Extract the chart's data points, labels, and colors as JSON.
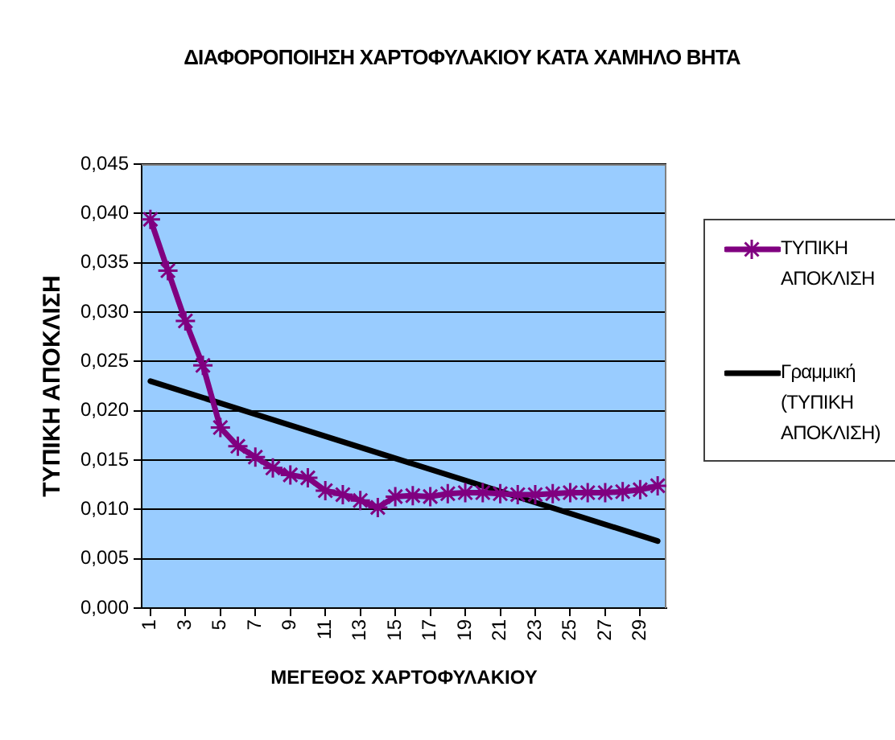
{
  "chart_data": {
    "type": "line",
    "title": "ΔΙΑΦΟΡΟΠΟΙΗΣΗ ΧΑΡΤΟΦΥΛΑΚΙΟΥ ΚΑΤΑ ΧΑΜΗΛΟ ΒΗΤΑ",
    "xlabel": "ΜΕΓΕΘΟΣ ΧΑΡΤΟΦΥΛΑΚΙΟΥ",
    "ylabel": "ΤΥΠΙΚΗ ΑΠΟΚΛΙΣΗ",
    "x": [
      1,
      2,
      3,
      4,
      5,
      6,
      7,
      8,
      9,
      10,
      11,
      12,
      13,
      14,
      15,
      16,
      17,
      18,
      19,
      20,
      21,
      22,
      23,
      24,
      25,
      26,
      27,
      28,
      29,
      30
    ],
    "series": [
      {
        "name": "ΤΥΠΙΚΗ ΑΠΟΚΛΙΣΗ",
        "color": "#800080",
        "values": [
          0.0394,
          0.0342,
          0.0291,
          0.0246,
          0.0183,
          0.0164,
          0.0153,
          0.0142,
          0.0135,
          0.0132,
          0.0119,
          0.0115,
          0.0109,
          0.0102,
          0.0113,
          0.0114,
          0.0113,
          0.0116,
          0.0117,
          0.0117,
          0.0116,
          0.0115,
          0.0115,
          0.0116,
          0.0117,
          0.0117,
          0.0117,
          0.0118,
          0.012,
          0.0124
        ]
      },
      {
        "name": "Γραμμική (ΤΥΠΙΚΗ ΑΠΟΚΛΙΣΗ)",
        "type": "line",
        "color": "#000000",
        "x": [
          1,
          30
        ],
        "values": [
          0.023,
          0.0068
        ],
        "marker": "none"
      }
    ],
    "xlim": [
      0.5,
      30.5
    ],
    "xticks": [
      1,
      3,
      5,
      7,
      9,
      11,
      13,
      15,
      17,
      19,
      21,
      23,
      25,
      27,
      29
    ],
    "ylim": [
      0,
      0.045
    ],
    "yticks": [
      {
        "value": 0,
        "label": "0,000"
      },
      {
        "value": 0.005,
        "label": "0,005"
      },
      {
        "value": 0.01,
        "label": "0,010"
      },
      {
        "value": 0.015,
        "label": "0,015"
      },
      {
        "value": 0.02,
        "label": "0,020"
      },
      {
        "value": 0.025,
        "label": "0,025"
      },
      {
        "value": 0.03,
        "label": "0,030"
      },
      {
        "value": 0.035,
        "label": "0,035"
      },
      {
        "value": 0.04,
        "label": "0,040"
      },
      {
        "value": 0.045,
        "label": "0,045"
      }
    ],
    "grid": "y",
    "legend": "right",
    "marker": "cross"
  }
}
